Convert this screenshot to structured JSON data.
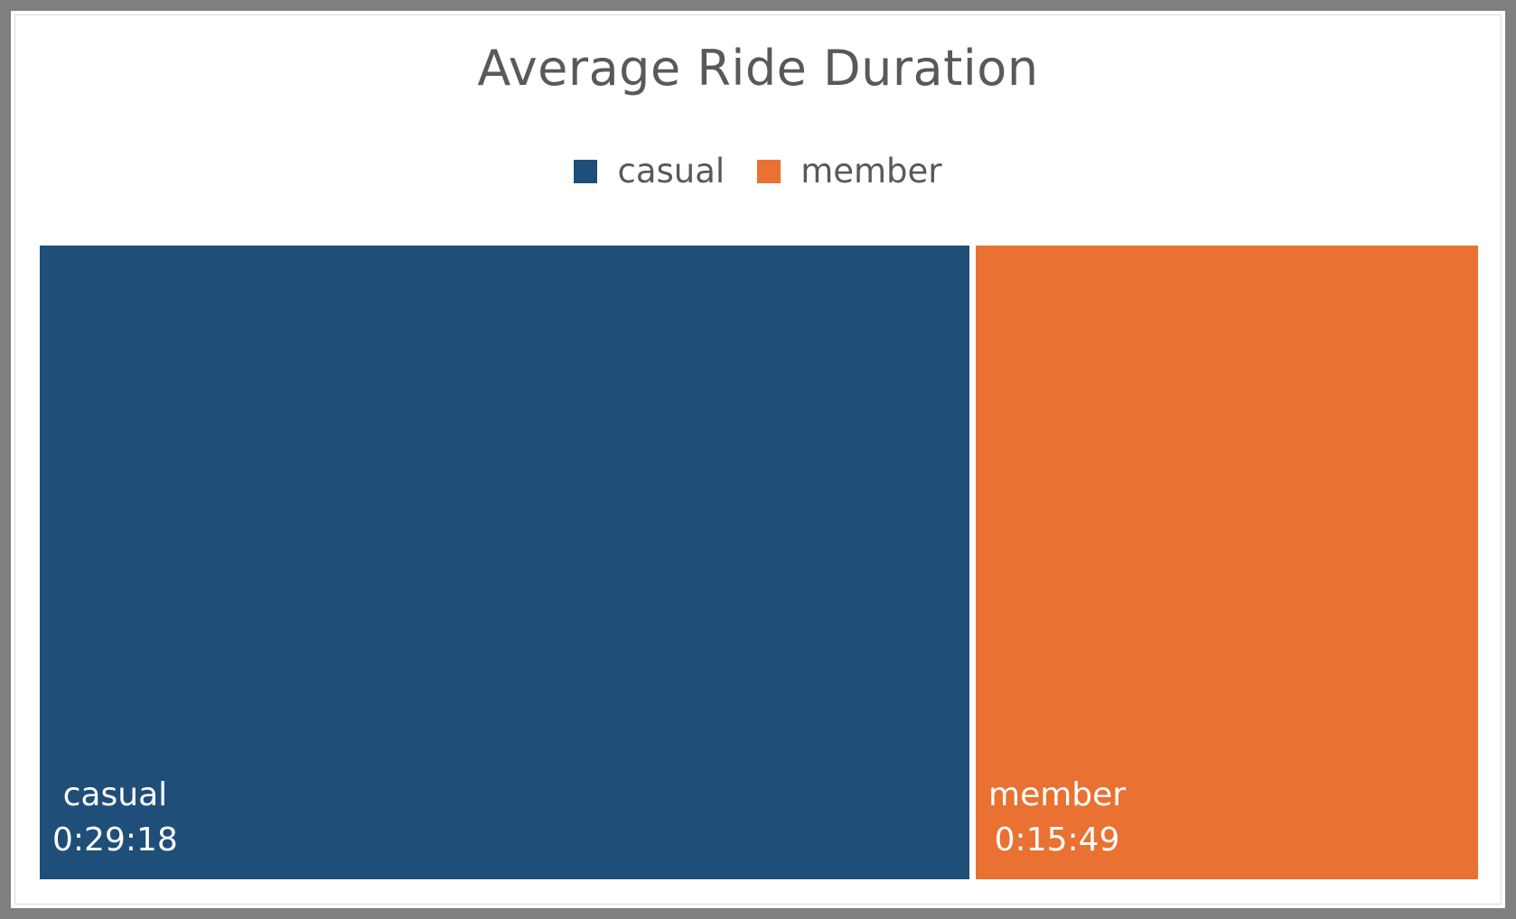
{
  "chart_data": {
    "type": "treemap",
    "title": "Average Ride Duration",
    "legend_position": "top",
    "series": [
      {
        "name": "casual",
        "value": "0:29:18",
        "seconds": 1758,
        "color": "#1f4e79"
      },
      {
        "name": "member",
        "value": "0:15:49",
        "seconds": 949,
        "color": "#e97132"
      }
    ]
  }
}
